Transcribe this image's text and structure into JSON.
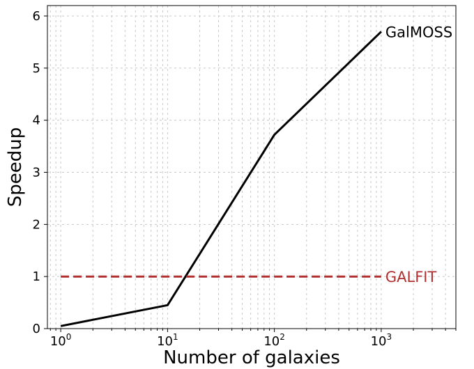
{
  "chart_data": {
    "type": "line",
    "xscale": "log",
    "xlabel": "Number of galaxies",
    "ylabel": "Speedup",
    "xlim": [
      0.75,
      5000
    ],
    "ylim": [
      0,
      6.2
    ],
    "grid": true,
    "x_ticks": [
      {
        "value": 1,
        "base": "10",
        "exp": "0"
      },
      {
        "value": 10,
        "base": "10",
        "exp": "1"
      },
      {
        "value": 100,
        "base": "10",
        "exp": "2"
      },
      {
        "value": 1000,
        "base": "10",
        "exp": "3"
      }
    ],
    "y_ticks": [
      {
        "value": 0,
        "label": "0"
      },
      {
        "value": 1,
        "label": "1"
      },
      {
        "value": 2,
        "label": "2"
      },
      {
        "value": 3,
        "label": "3"
      },
      {
        "value": 4,
        "label": "4"
      },
      {
        "value": 5,
        "label": "5"
      },
      {
        "value": 6,
        "label": "6"
      }
    ],
    "series": [
      {
        "name": "GalMOSS",
        "color": "#000000",
        "style": "solid",
        "x": [
          1,
          10,
          100,
          1000
        ],
        "y": [
          0.05,
          0.45,
          3.72,
          5.7
        ]
      },
      {
        "name": "GALFIT",
        "color": "#b03030",
        "style": "dashed",
        "x": [
          1,
          10,
          100,
          1000
        ],
        "y": [
          1,
          1,
          1,
          1
        ]
      }
    ]
  }
}
